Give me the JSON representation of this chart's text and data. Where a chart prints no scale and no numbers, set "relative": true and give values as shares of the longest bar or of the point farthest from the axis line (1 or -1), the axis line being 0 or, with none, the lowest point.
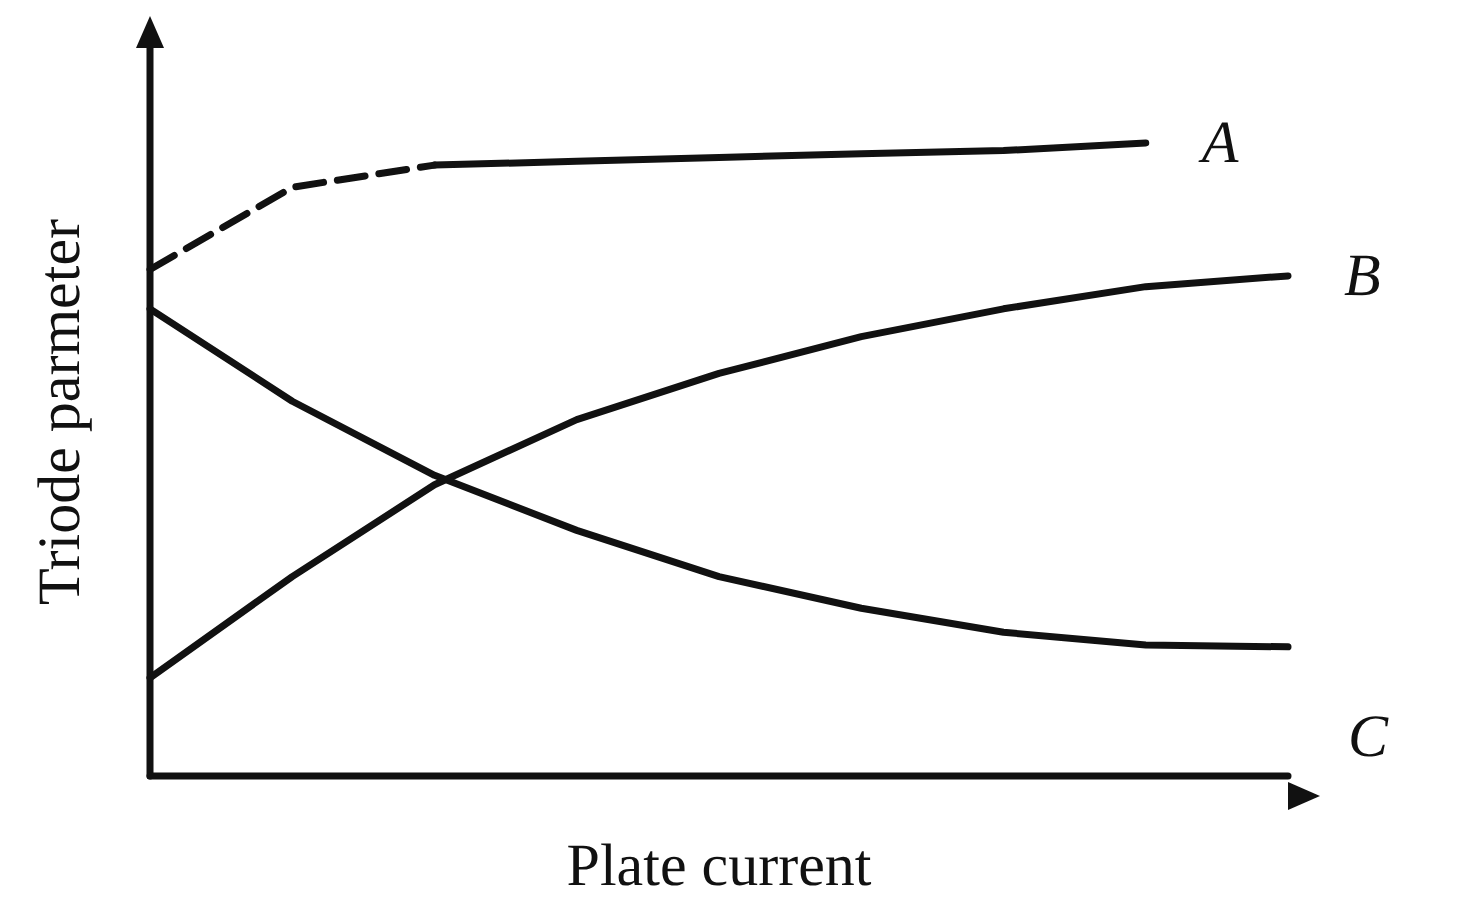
{
  "chart_data": {
    "type": "line",
    "relative": true,
    "xlabel": "Plate current",
    "ylabel": "Triode parmeter",
    "categories": [
      null,
      null,
      null,
      null,
      null,
      null,
      null,
      null,
      null
    ],
    "series": [
      {
        "color": "#111111",
        "line_style": "dashed",
        "values": [
          0.8,
          0.93,
          0.965,
          null,
          null,
          null,
          null,
          null,
          null
        ]
      },
      {
        "name": "A",
        "color": "#111111",
        "line_style": "solid",
        "values": [
          null,
          null,
          0.965,
          0.971,
          0.977,
          0.983,
          0.988,
          1,
          null
        ]
      },
      {
        "name": "B",
        "color": "#111111",
        "line_style": "solid",
        "values": [
          0.155,
          0.315,
          0.46,
          0.563,
          0.636,
          0.694,
          0.738,
          0.773,
          0.79
        ]
      },
      {
        "name": "C",
        "color": "#111111",
        "line_style": "solid",
        "values": [
          0.738,
          0.592,
          0.475,
          0.388,
          0.315,
          0.265,
          0.227,
          0.207,
          0.204
        ]
      }
    ],
    "legend": false,
    "grid": false,
    "marker": "none"
  }
}
